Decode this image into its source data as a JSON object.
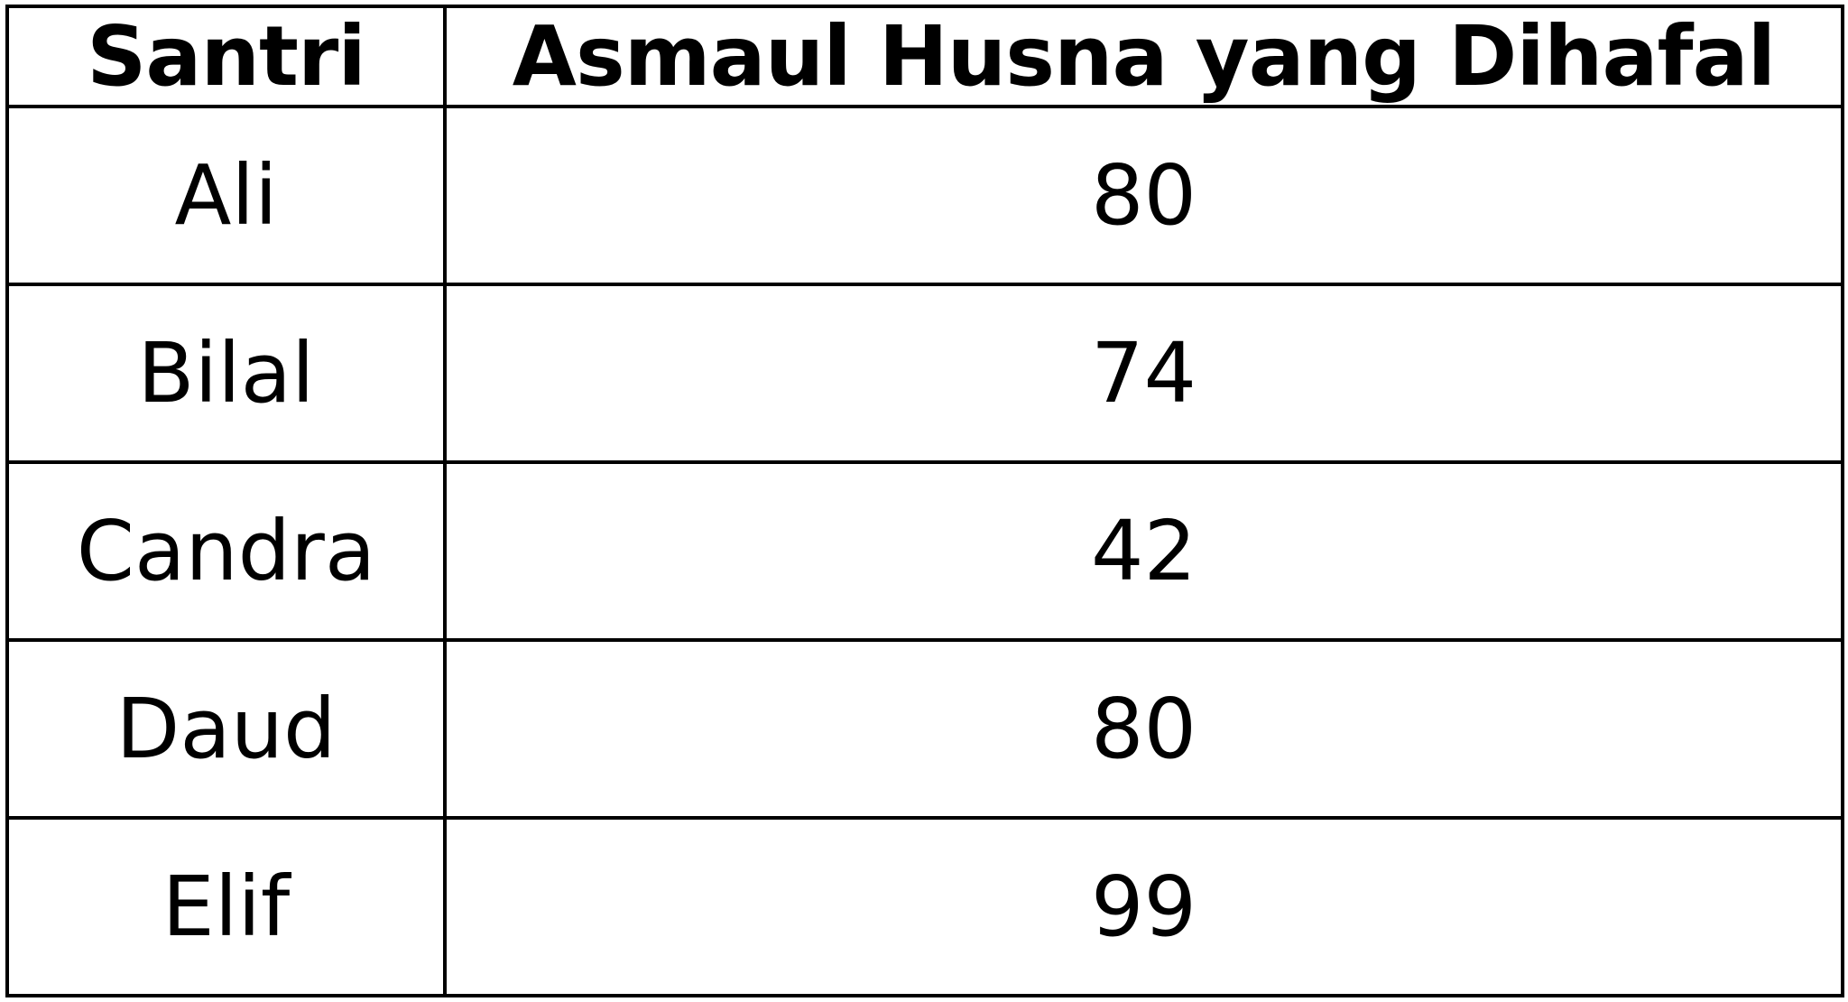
{
  "table": {
    "headers": [
      "Santri",
      "Asmaul Husna yang Dihafal"
    ],
    "rows": [
      [
        "Ali",
        "80"
      ],
      [
        "Bilal",
        "74"
      ],
      [
        "Candra",
        "42"
      ],
      [
        "Daud",
        "80"
      ],
      [
        "Elif",
        "99"
      ]
    ]
  }
}
